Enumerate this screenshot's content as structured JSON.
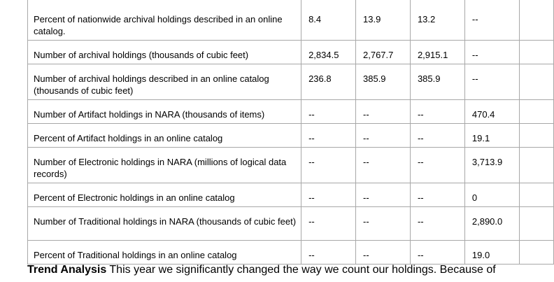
{
  "table": {
    "rows": [
      {
        "label": "Percent of nationwide archival holdings described in an online catalog.",
        "values": [
          "8.4",
          "13.9",
          "13.2",
          "--",
          ""
        ]
      },
      {
        "label": "Number of archival holdings (thousands of cubic feet)",
        "values": [
          "2,834.5",
          "2,767.7",
          "2,915.1",
          "--",
          ""
        ]
      },
      {
        "label": "Number of archival holdings described in an online catalog (thousands of cubic feet)",
        "values": [
          "236.8",
          "385.9",
          "385.9",
          "--",
          ""
        ]
      },
      {
        "label": "Number of Artifact holdings in NARA (thousands of items)",
        "values": [
          "--",
          "--",
          "--",
          "470.4",
          ""
        ]
      },
      {
        "label": "Percent of Artifact holdings in an online catalog",
        "values": [
          "--",
          "--",
          "--",
          "19.1",
          ""
        ]
      },
      {
        "label": "Number of Electronic holdings in NARA (millions of logical data records)",
        "values": [
          "--",
          "--",
          "--",
          "3,713.9",
          ""
        ]
      },
      {
        "label": "Percent of Electronic holdings in an online catalog",
        "values": [
          "--",
          "--",
          "--",
          "0",
          ""
        ]
      },
      {
        "label": "Number of Traditional holdings in NARA (thousands of cubic feet)",
        "values": [
          "--",
          "--",
          "--",
          "2,890.0",
          ""
        ]
      },
      {
        "label": "Percent of Traditional holdings in an online catalog",
        "values": [
          "--",
          "--",
          "--",
          "19.0",
          ""
        ]
      }
    ]
  },
  "trend": {
    "heading": "Trend Analysis",
    "text": " This year we significantly changed the way we count our holdings. Because of"
  }
}
